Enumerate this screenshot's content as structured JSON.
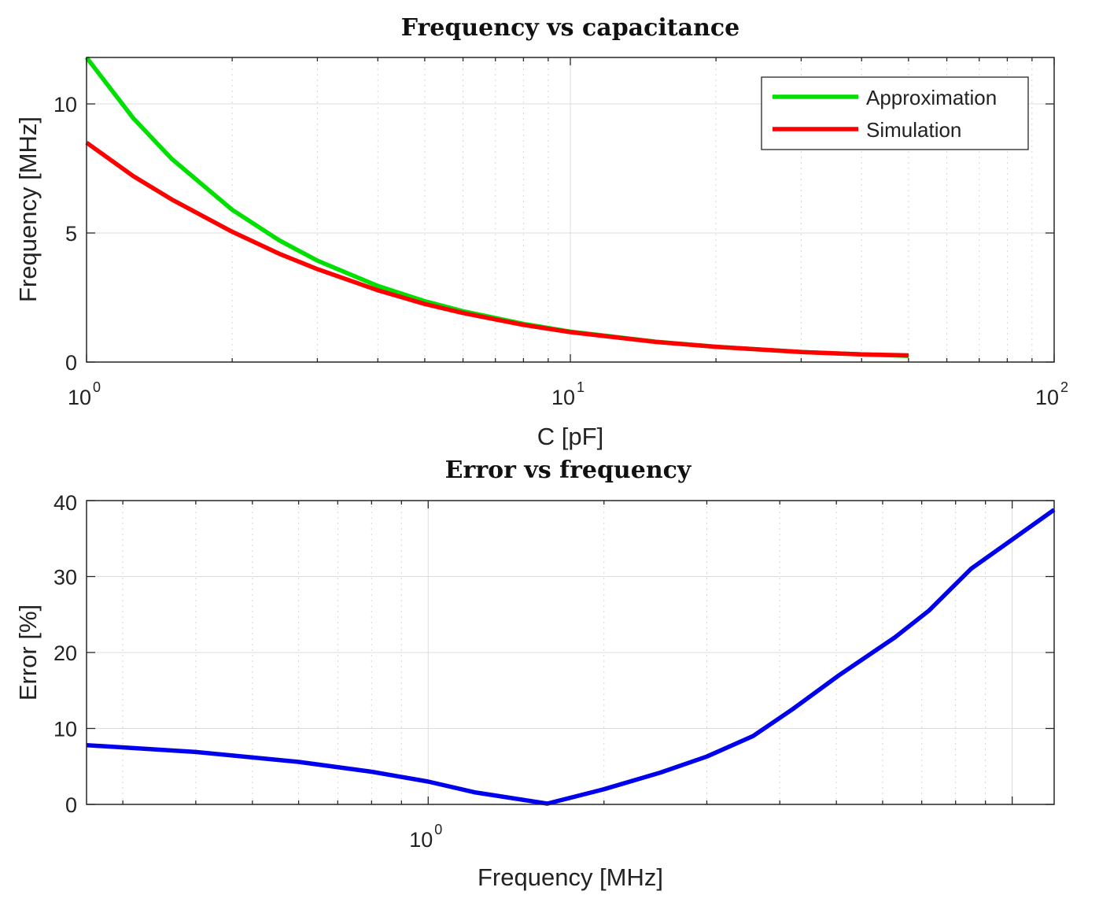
{
  "chart_data": [
    {
      "type": "line",
      "title": "Frequency vs capacitance",
      "xlabel": "C [pF]",
      "ylabel": "Frequency [MHz]",
      "xscale": "log",
      "xlim": [
        1,
        100
      ],
      "ylim": [
        0,
        11.8
      ],
      "grid": true,
      "legend_position": "top-right",
      "x_ticks": [
        {
          "base": "10",
          "exp": "0"
        },
        {
          "base": "10",
          "exp": "1"
        },
        {
          "base": "10",
          "exp": "2"
        }
      ],
      "y_ticks": [
        "0",
        "5",
        "10"
      ],
      "y_tick_values": [
        0,
        5,
        10
      ],
      "series": [
        {
          "name": "Approximation",
          "color": "#00e000",
          "x": [
            1,
            1.25,
            1.5,
            2,
            2.5,
            3,
            4,
            5,
            6,
            8,
            10,
            15,
            20,
            30,
            40,
            50
          ],
          "y": [
            11.8,
            9.44,
            7.87,
            5.9,
            4.72,
            3.93,
            2.95,
            2.36,
            1.97,
            1.48,
            1.18,
            0.79,
            0.59,
            0.39,
            0.3,
            0.24
          ]
        },
        {
          "name": "Simulation",
          "color": "#ff0000",
          "x": [
            1,
            1.25,
            1.5,
            2,
            2.5,
            3,
            4,
            5,
            6,
            8,
            10,
            15,
            20,
            30,
            40,
            50
          ],
          "y": [
            8.5,
            7.2,
            6.3,
            5.05,
            4.2,
            3.6,
            2.78,
            2.25,
            1.9,
            1.44,
            1.16,
            0.78,
            0.59,
            0.39,
            0.3,
            0.26
          ]
        }
      ]
    },
    {
      "type": "line",
      "title": "Error vs frequency",
      "xlabel": "Frequency [MHz]",
      "ylabel": "Error [%]",
      "xscale": "log",
      "xlim": [
        0.26,
        11.8
      ],
      "ylim": [
        0,
        40
      ],
      "grid": true,
      "x_ticks": [
        {
          "base": "10",
          "exp": "0"
        }
      ],
      "y_ticks": [
        "0",
        "10",
        "20",
        "30",
        "40"
      ],
      "y_tick_values": [
        0,
        10,
        20,
        30,
        40
      ],
      "series": [
        {
          "name": "Error",
          "color": "#0000ee",
          "x": [
            0.26,
            0.4,
            0.6,
            0.8,
            1.0,
            1.2,
            1.6,
            2.0,
            2.5,
            3.0,
            3.6,
            4.2,
            5.05,
            6.3,
            7.2,
            8.5,
            11.8
          ],
          "y": [
            7.8,
            6.9,
            5.6,
            4.3,
            3.0,
            1.6,
            0.1,
            2.0,
            4.2,
            6.3,
            9.0,
            12.5,
            17.0,
            22.0,
            25.5,
            31.0,
            38.8
          ]
        }
      ]
    }
  ]
}
